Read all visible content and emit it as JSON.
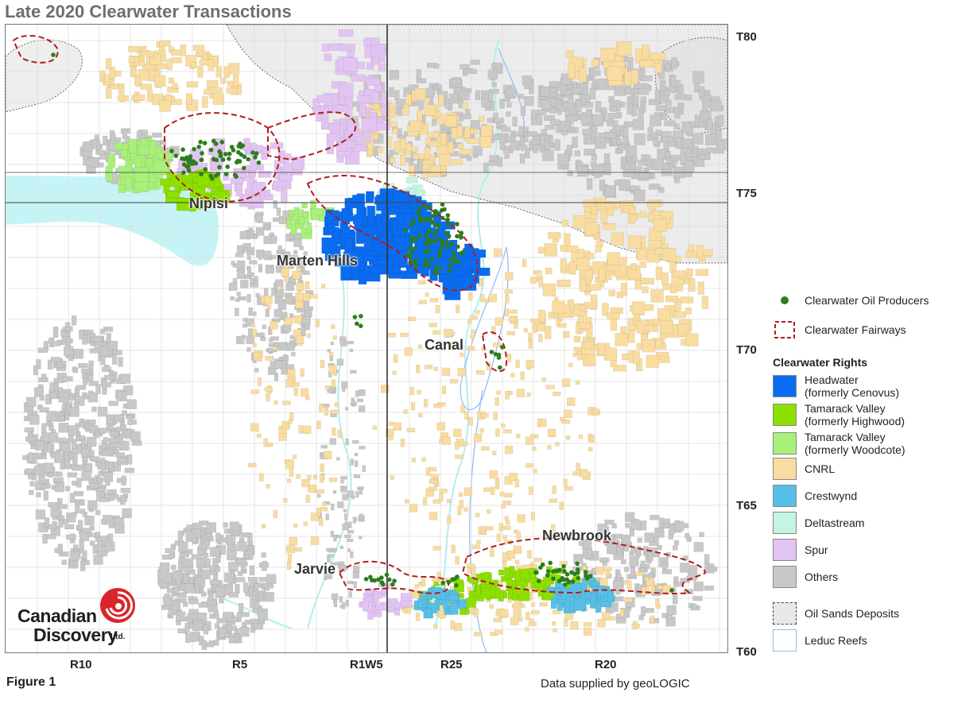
{
  "title": "Late 2020 Clearwater Transactions",
  "figure_label": "Figure 1",
  "credit": "Data supplied by geoLOGIC",
  "places": {
    "nipisi": "Nipisi",
    "marten_hills": "Marten Hills",
    "canal": "Canal",
    "jarvie": "Jarvie",
    "newbrook": "Newbrook"
  },
  "townships": [
    "T80",
    "T75",
    "T70",
    "T65",
    "T60"
  ],
  "ranges": [
    "R10",
    "R5",
    "R1W5",
    "R25",
    "R20"
  ],
  "legend": {
    "producers": "Clearwater Oil Producers",
    "fairways": "Clearwater Fairways",
    "rights_heading": "Clearwater Rights",
    "rights": [
      {
        "label": "Headwater",
        "sub": "(formerly Cenovus)",
        "color": "#0a6cf0"
      },
      {
        "label": "Tamarack Valley",
        "sub": "(formerly Highwood)",
        "color": "#8ee000"
      },
      {
        "label": "Tamarack Valley",
        "sub": "(formerly Woodcote)",
        "color": "#a8f07a"
      },
      {
        "label": "CNRL",
        "sub": "",
        "color": "#f8dca0"
      },
      {
        "label": "Crestwynd",
        "sub": "",
        "color": "#58bfe8"
      },
      {
        "label": "Deltastream",
        "sub": "",
        "color": "#c2f5e2"
      },
      {
        "label": "Spur",
        "sub": "",
        "color": "#e2c4f2"
      },
      {
        "label": "Others",
        "sub": "",
        "color": "#c8c8c8"
      }
    ],
    "oil_sands": "Oil Sands Deposits",
    "leduc": "Leduc Reefs"
  },
  "colors": {
    "producer": "#2e7d1e",
    "fairway": "#b01c1c",
    "oil_sands_fill": "#e8e8e8",
    "leduc_stroke": "#8fb8f2",
    "river": "#aef0f0",
    "logo_red": "#d8262a"
  },
  "logo": {
    "line1": "Canadian",
    "line2": "Discovery",
    "suffix": "Ltd."
  }
}
